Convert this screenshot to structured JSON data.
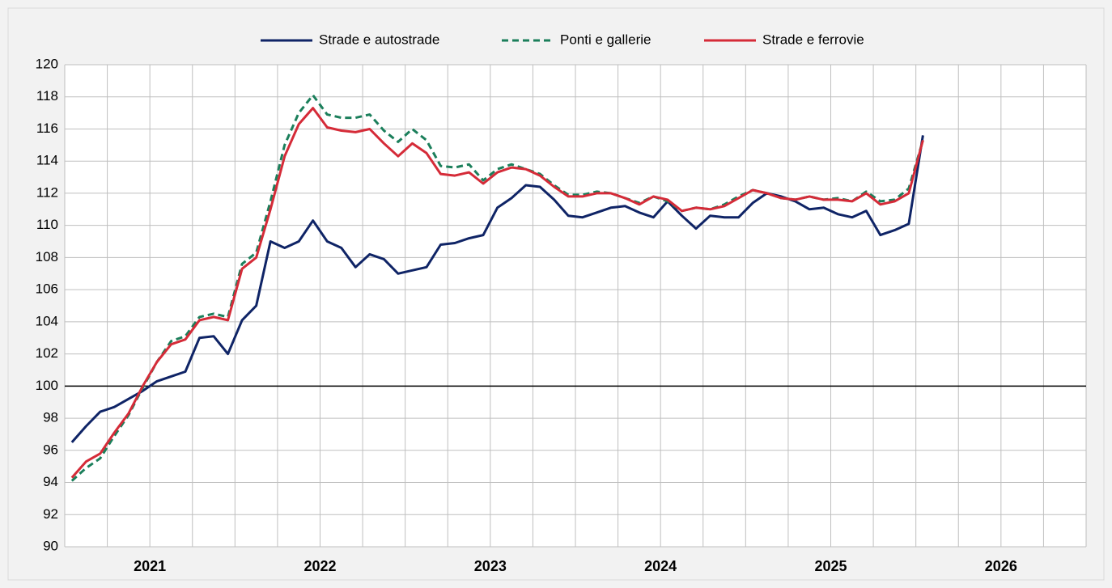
{
  "chart_data": {
    "type": "line",
    "x_labels": [
      2021,
      2022,
      2023,
      2024,
      2025,
      2026
    ],
    "series": [
      {
        "name": "Strade e autostrade",
        "color": "#0f2466",
        "dashed": false,
        "values": [
          96.5,
          97.5,
          98.4,
          98.7,
          99.2,
          99.7,
          100.3,
          100.6,
          100.9,
          103.0,
          103.1,
          102.0,
          104.1,
          105.0,
          109.0,
          108.6,
          109.0,
          110.3,
          109.0,
          108.6,
          107.4,
          108.2,
          107.9,
          107.0,
          107.2,
          107.4,
          108.8,
          108.9,
          109.2,
          109.4,
          111.1,
          111.7,
          112.5,
          112.4,
          111.6,
          110.6,
          110.5,
          110.8,
          111.1,
          111.2,
          110.8,
          110.5,
          111.5,
          110.6,
          109.8,
          110.6,
          110.5,
          110.5,
          111.4,
          112.0,
          111.8,
          111.5,
          111.0,
          111.1,
          110.7,
          110.5,
          110.9,
          109.4,
          109.7,
          110.1,
          115.6
        ]
      },
      {
        "name": "Ponti e gallerie",
        "color": "#1b7f5b",
        "dashed": true,
        "values": [
          94.1,
          94.9,
          95.5,
          96.9,
          98.2,
          99.9,
          101.5,
          102.8,
          103.1,
          104.3,
          104.5,
          104.3,
          107.6,
          108.3,
          111.5,
          115.0,
          117.0,
          118.1,
          116.9,
          116.7,
          116.7,
          116.9,
          115.9,
          115.2,
          116.0,
          115.3,
          113.7,
          113.6,
          113.8,
          112.8,
          113.5,
          113.8,
          113.5,
          113.2,
          112.5,
          111.9,
          111.9,
          112.1,
          112.0,
          111.7,
          111.4,
          111.8,
          111.5,
          110.9,
          111.1,
          111.0,
          111.3,
          111.8,
          112.2,
          112.0,
          111.7,
          111.6,
          111.8,
          111.6,
          111.7,
          111.5,
          112.1,
          111.5,
          111.6,
          112.3,
          115.3
        ]
      },
      {
        "name": "Strade e ferrovie",
        "color": "#d52b38",
        "dashed": false,
        "values": [
          94.3,
          95.3,
          95.8,
          97.1,
          98.3,
          100.0,
          101.5,
          102.6,
          102.9,
          104.1,
          104.3,
          104.1,
          107.3,
          108.0,
          111.0,
          114.3,
          116.3,
          117.3,
          116.1,
          115.9,
          115.8,
          116.0,
          115.1,
          114.3,
          115.1,
          114.5,
          113.2,
          113.1,
          113.3,
          112.6,
          113.3,
          113.6,
          113.5,
          113.1,
          112.4,
          111.8,
          111.8,
          112.0,
          112.0,
          111.7,
          111.3,
          111.8,
          111.6,
          110.9,
          111.1,
          111.0,
          111.2,
          111.7,
          112.2,
          112.0,
          111.7,
          111.6,
          111.8,
          111.6,
          111.6,
          111.5,
          112.0,
          111.3,
          111.5,
          112.0,
          115.3
        ]
      }
    ],
    "ylim": [
      90,
      120
    ],
    "yticks": [
      90,
      92,
      94,
      96,
      98,
      100,
      102,
      104,
      106,
      108,
      110,
      112,
      114,
      116,
      118,
      120
    ],
    "reference_line": 100,
    "grid": true
  }
}
